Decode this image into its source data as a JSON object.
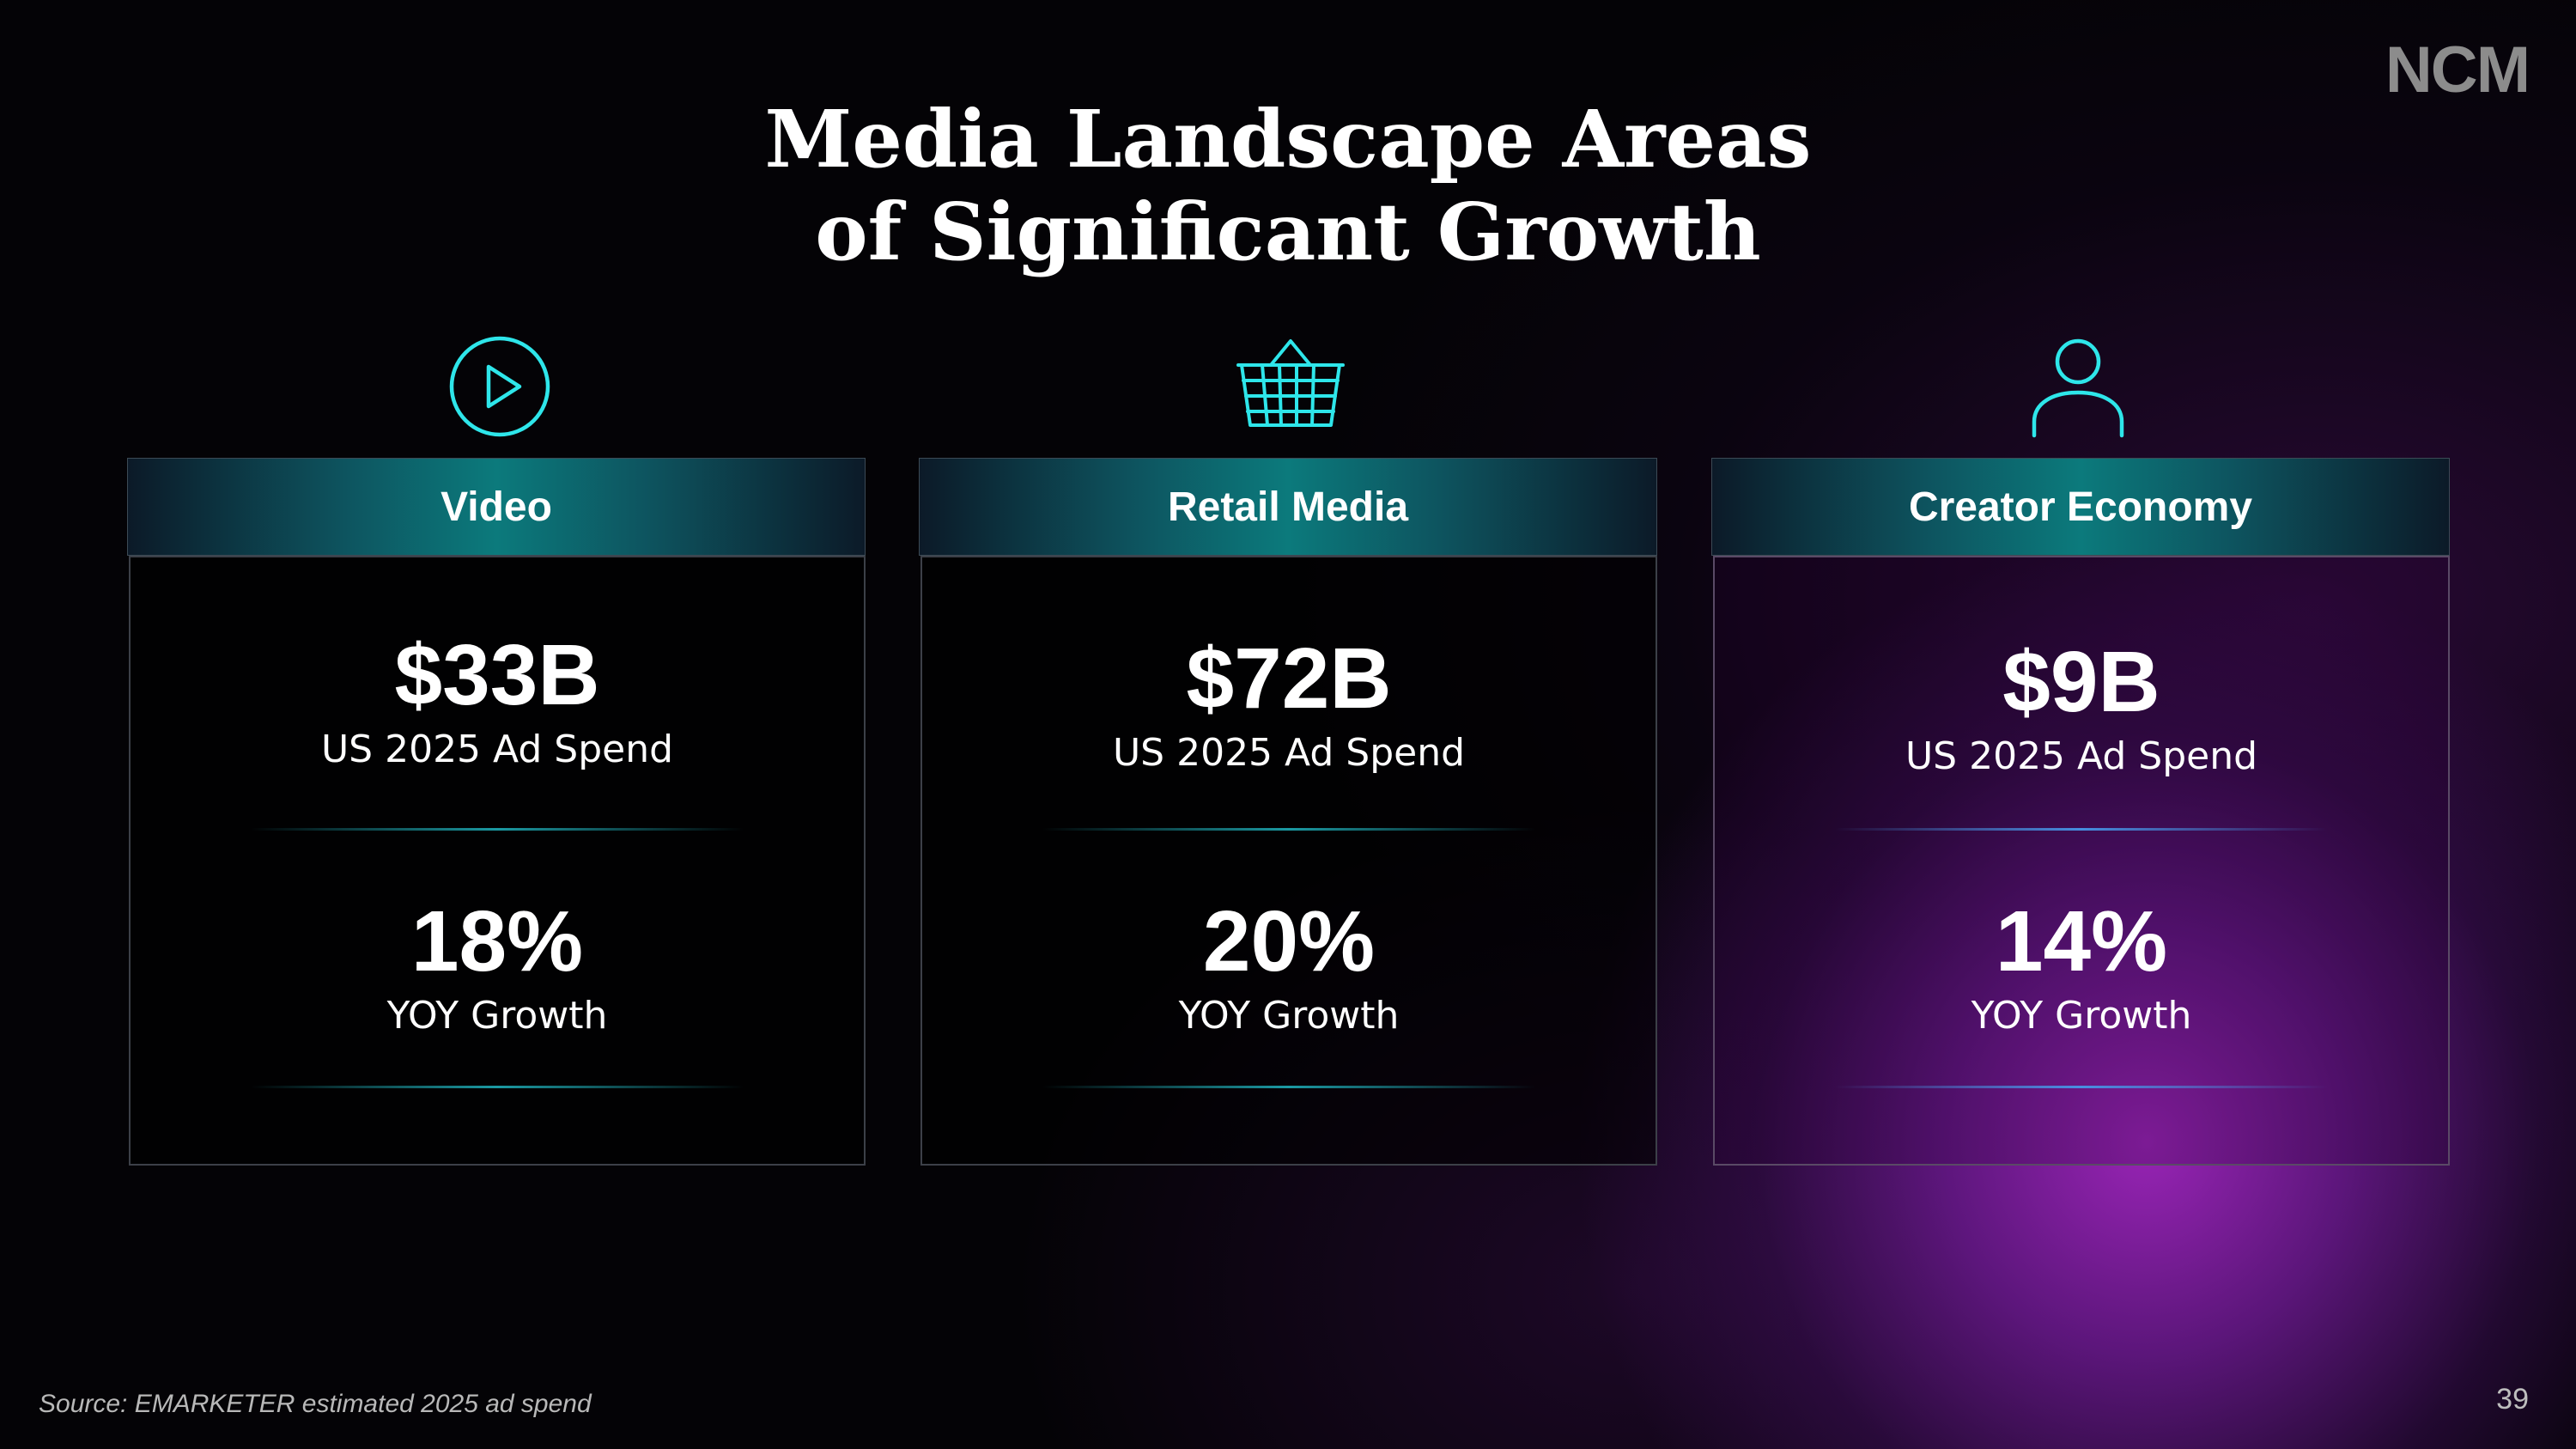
{
  "logo": "NCM",
  "title": {
    "line1": "Media Landscape Areas",
    "line2": "of Significant Growth"
  },
  "cards": [
    {
      "icon": "play-circle-icon",
      "header": "Video",
      "ad_spend_value": "$33B",
      "ad_spend_label": "US 2025 Ad Spend",
      "growth_value": "18%",
      "growth_label": "YOY Growth"
    },
    {
      "icon": "shopping-basket-icon",
      "header": "Retail Media",
      "ad_spend_value": "$72B",
      "ad_spend_label": "US 2025 Ad Spend",
      "growth_value": "20%",
      "growth_label": "YOY Growth"
    },
    {
      "icon": "person-icon",
      "header": "Creator Economy",
      "ad_spend_value": "$9B",
      "ad_spend_label": "US 2025 Ad Spend",
      "growth_value": "14%",
      "growth_label": "YOY Growth"
    }
  ],
  "colors": {
    "icon_stroke": "#2ee6ea",
    "accent_purple": "#a026be",
    "header_teal": "#0c7a7c"
  },
  "source": "Source: EMARKETER estimated 2025 ad spend",
  "page_number": "39"
}
